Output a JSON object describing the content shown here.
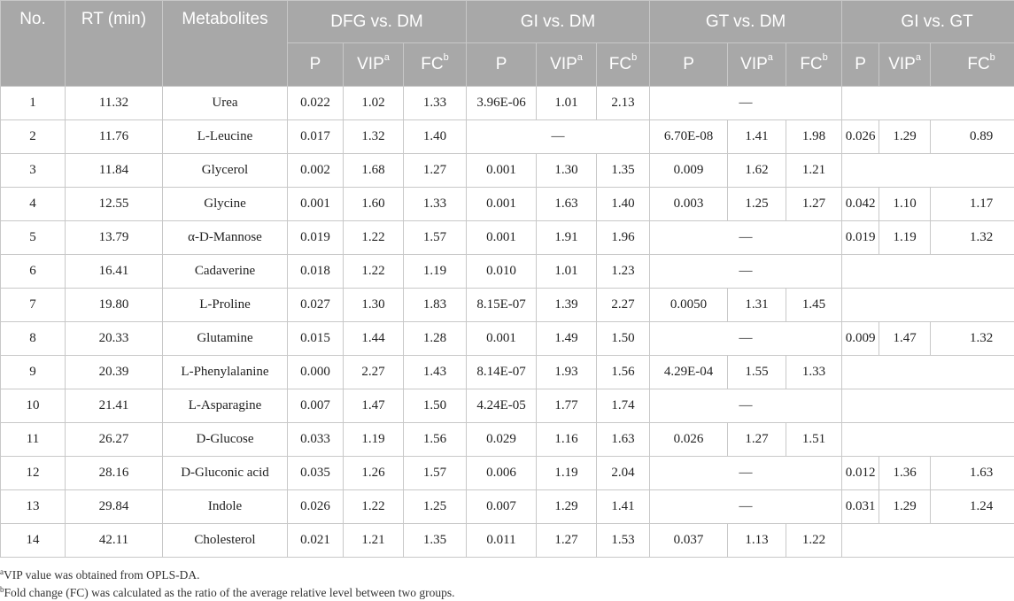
{
  "table": {
    "headers": {
      "no": "No.",
      "rt": "RT (min)",
      "metabolites": "Metabolites",
      "groups": [
        "DFG vs. DM",
        "GI vs. DM",
        "GT vs. DM",
        "GI vs. GT"
      ],
      "sub": {
        "p": "P",
        "vip": "VIP",
        "vip_sup": "a",
        "fc": "FC",
        "fc_sup": "b"
      }
    },
    "rows": [
      {
        "no": "1",
        "rt": "11.32",
        "name": "Urea",
        "g": [
          {
            "p": "0.022",
            "vip": "1.02",
            "fc": "1.33"
          },
          {
            "p": "3.96E-06",
            "vip": "1.01",
            "fc": "2.13"
          },
          {
            "dash": "—"
          },
          {
            "blank": true
          }
        ]
      },
      {
        "no": "2",
        "rt": "11.76",
        "name": "L-Leucine",
        "g": [
          {
            "p": "0.017",
            "vip": "1.32",
            "fc": "1.40"
          },
          {
            "dash": "—"
          },
          {
            "p": "6.70E-08",
            "vip": "1.41",
            "fc": "1.98"
          },
          {
            "p": "0.026",
            "vip": "1.29",
            "fc": "0.89"
          }
        ]
      },
      {
        "no": "3",
        "rt": "11.84",
        "name": "Glycerol",
        "g": [
          {
            "p": "0.002",
            "vip": "1.68",
            "fc": "1.27"
          },
          {
            "p": "0.001",
            "vip": "1.30",
            "fc": "1.35"
          },
          {
            "p": "0.009",
            "vip": "1.62",
            "fc": "1.21"
          },
          {
            "blank": true
          }
        ]
      },
      {
        "no": "4",
        "rt": "12.55",
        "name": "Glycine",
        "g": [
          {
            "p": "0.001",
            "vip": "1.60",
            "fc": "1.33"
          },
          {
            "p": "0.001",
            "vip": "1.63",
            "fc": "1.40"
          },
          {
            "p": "0.003",
            "vip": "1.25",
            "fc": "1.27"
          },
          {
            "p": "0.042",
            "vip": "1.10",
            "fc": "1.17"
          }
        ]
      },
      {
        "no": "5",
        "rt": "13.79",
        "name": "α-D-Mannose",
        "g": [
          {
            "p": "0.019",
            "vip": "1.22",
            "fc": "1.57"
          },
          {
            "p": "0.001",
            "vip": "1.91",
            "fc": "1.96"
          },
          {
            "dash": "—"
          },
          {
            "p": "0.019",
            "vip": "1.19",
            "fc": "1.32"
          }
        ]
      },
      {
        "no": "6",
        "rt": "16.41",
        "name": "Cadaverine",
        "g": [
          {
            "p": "0.018",
            "vip": "1.22",
            "fc": "1.19"
          },
          {
            "p": "0.010",
            "vip": "1.01",
            "fc": "1.23"
          },
          {
            "dash": "—"
          },
          {
            "blank": true
          }
        ]
      },
      {
        "no": "7",
        "rt": "19.80",
        "name": "L-Proline",
        "g": [
          {
            "p": "0.027",
            "vip": "1.30",
            "fc": "1.83"
          },
          {
            "p": "8.15E-07",
            "vip": "1.39",
            "fc": "2.27"
          },
          {
            "p": "0.0050",
            "vip": "1.31",
            "fc": "1.45"
          },
          {
            "blank": true
          }
        ]
      },
      {
        "no": "8",
        "rt": "20.33",
        "name": "Glutamine",
        "g": [
          {
            "p": "0.015",
            "vip": "1.44",
            "fc": "1.28"
          },
          {
            "p": "0.001",
            "vip": "1.49",
            "fc": "1.50"
          },
          {
            "dash": "—"
          },
          {
            "p": "0.009",
            "vip": "1.47",
            "fc": "1.32"
          }
        ]
      },
      {
        "no": "9",
        "rt": "20.39",
        "name": "L-Phenylalanine",
        "g": [
          {
            "p": "0.000",
            "vip": "2.27",
            "fc": "1.43"
          },
          {
            "p": "8.14E-07",
            "vip": "1.93",
            "fc": "1.56"
          },
          {
            "p": "4.29E-04",
            "vip": "1.55",
            "fc": "1.33"
          },
          {
            "blank": true
          }
        ]
      },
      {
        "no": "10",
        "rt": "21.41",
        "name": "L-Asparagine",
        "g": [
          {
            "p": "0.007",
            "vip": "1.47",
            "fc": "1.50"
          },
          {
            "p": "4.24E-05",
            "vip": "1.77",
            "fc": "1.74"
          },
          {
            "dash": "—"
          },
          {
            "blank": true
          }
        ]
      },
      {
        "no": "11",
        "rt": "26.27",
        "name": "D-Glucose",
        "g": [
          {
            "p": "0.033",
            "vip": "1.19",
            "fc": "1.56"
          },
          {
            "p": "0.029",
            "vip": "1.16",
            "fc": "1.63"
          },
          {
            "p": "0.026",
            "vip": "1.27",
            "fc": "1.51"
          },
          {
            "blank": true
          }
        ]
      },
      {
        "no": "12",
        "rt": "28.16",
        "name": "D-Gluconic acid",
        "g": [
          {
            "p": "0.035",
            "vip": "1.26",
            "fc": "1.57"
          },
          {
            "p": "0.006",
            "vip": "1.19",
            "fc": "2.04"
          },
          {
            "dash": "—"
          },
          {
            "p": "0.012",
            "vip": "1.36",
            "fc": "1.63"
          }
        ]
      },
      {
        "no": "13",
        "rt": "29.84",
        "name": "Indole",
        "g": [
          {
            "p": "0.026",
            "vip": "1.22",
            "fc": "1.25"
          },
          {
            "p": "0.007",
            "vip": "1.29",
            "fc": "1.41"
          },
          {
            "dash": "—"
          },
          {
            "p": "0.031",
            "vip": "1.29",
            "fc": "1.24"
          }
        ]
      },
      {
        "no": "14",
        "rt": "42.11",
        "name": "Cholesterol",
        "g": [
          {
            "p": "0.021",
            "vip": "1.21",
            "fc": "1.35"
          },
          {
            "p": "0.011",
            "vip": "1.27",
            "fc": "1.53"
          },
          {
            "p": "0.037",
            "vip": "1.13",
            "fc": "1.22"
          },
          {
            "blank": true
          }
        ]
      }
    ]
  },
  "footnotes": [
    {
      "mark": "a",
      "text": "VIP value was obtained from OPLS-DA."
    },
    {
      "mark": "b",
      "text": "Fold change (FC) was calculated as the ratio of the average relative level between two groups."
    }
  ]
}
